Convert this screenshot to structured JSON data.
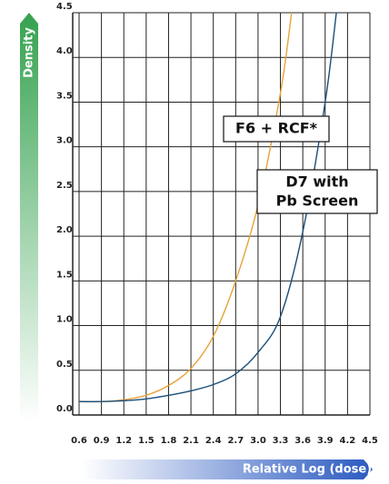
{
  "chart_data": {
    "type": "line",
    "y_label": "Density",
    "x_label": "Relative Log (dose)",
    "annotations": [
      {
        "lines": [
          "F6 + RCF*"
        ]
      },
      {
        "lines": [
          "D7 with",
          "Pb Screen"
        ]
      }
    ],
    "xlim": [
      0.6,
      4.5
    ],
    "xticks": [
      0.6,
      0.9,
      1.2,
      1.5,
      1.8,
      2.1,
      2.4,
      2.7,
      {
        "value": 3.0,
        "label": "3.0"
      },
      3.3,
      3.6,
      3.9,
      4.2,
      4.5
    ],
    "ylim": [
      0,
      4.5
    ],
    "yticks": [
      {
        "value": 0,
        "label": "0.0"
      },
      0.5,
      {
        "value": 1,
        "label": "1.0"
      },
      1.5,
      {
        "value": 2,
        "label": "2.0"
      },
      2.5,
      {
        "value": 3,
        "label": "3.0"
      },
      3.5,
      {
        "value": 4,
        "label": "4.0"
      },
      4.5
    ],
    "grid": true,
    "series": [
      {
        "color": "#e8a23a",
        "x": [
          0.6,
          0.9,
          1.2,
          1.5,
          1.8,
          2.1,
          2.4,
          2.7,
          3.0,
          3.3,
          3.45
        ],
        "values": [
          0.15,
          0.15,
          0.17,
          0.22,
          0.33,
          0.52,
          0.88,
          1.5,
          2.35,
          3.6,
          4.5
        ]
      },
      {
        "color": "#1a4f7a",
        "x": [
          0.6,
          0.9,
          1.2,
          1.5,
          1.8,
          2.1,
          2.4,
          2.7,
          3.0,
          3.3,
          3.6,
          3.9,
          4.05
        ],
        "values": [
          0.15,
          0.15,
          0.16,
          0.18,
          0.22,
          0.27,
          0.34,
          0.46,
          0.7,
          1.1,
          2.05,
          3.5,
          4.5
        ]
      }
    ]
  }
}
